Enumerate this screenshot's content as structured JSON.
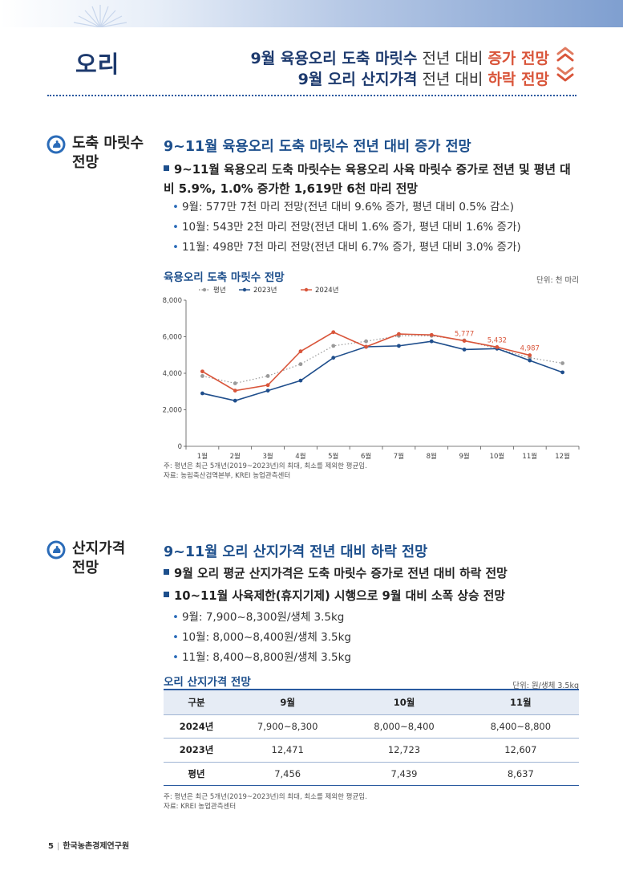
{
  "header": {
    "section_title": "오리",
    "headline1": {
      "bold": "9월 육용오리 도축 마릿수",
      "plain": " 전년 대비 ",
      "accent": "증가 전망"
    },
    "headline2": {
      "bold": "9월 오리 산지가격",
      "plain": " 전년 대비 ",
      "accent": "하락 전망"
    },
    "arrows_icon": "triple-chevron-up-down-icon"
  },
  "section1": {
    "side_label": [
      "도축 마릿수",
      "전망"
    ],
    "icon": "duck-icon",
    "heading": "9~11월 육용오리 도축 마릿수 전년 대비 증가 전망",
    "main_bullet": "9~11월 육용오리 도축 마릿수는 육용오리 사육 마릿수 증가로 전년 및 평년 대비 5.9%, 1.0% 증가한 1,619만 6천 마리 전망",
    "sub_bullets": [
      "9월: 577만 7천 마리 전망(전년 대비 9.6% 증가, 평년 대비 0.5% 감소)",
      "10월: 543만 2천 마리 전망(전년 대비 1.6% 증가, 평년 대비 1.6% 증가)",
      "11월: 498만 7천 마리 전망(전년 대비 6.7% 증가, 평년 대비 3.0% 증가)"
    ],
    "chart_title": "육용오리 도축 마릿수 전망",
    "chart_unit": "단위: 천 마리",
    "notes": [
      "주: 평년은 최근 5개년(2019~2023년)의 최대, 최소를 제외한 평균임.",
      "자료: 농림축산검역본부, KREI 농업관측센터"
    ]
  },
  "chart_data": {
    "type": "line",
    "title": "육용오리 도축 마릿수 전망",
    "x": [
      "1월",
      "2월",
      "3월",
      "4월",
      "5월",
      "6월",
      "7월",
      "8월",
      "9월",
      "10월",
      "11월",
      "12월"
    ],
    "ylim": [
      0,
      8000
    ],
    "yticks": [
      "0",
      "2,000",
      "4,000",
      "6,000",
      "8,000"
    ],
    "ytick_values": [
      0,
      2000,
      4000,
      6000,
      8000
    ],
    "grid": false,
    "legend_position": "top-left",
    "series": [
      {
        "name": "평년",
        "color": "#9a9a9a",
        "style": "dotted",
        "values": [
          3850,
          3450,
          3850,
          4500,
          5500,
          5750,
          6050,
          6050,
          5800,
          5350,
          4850,
          4550
        ]
      },
      {
        "name": "2023년",
        "color": "#1f4e8c",
        "style": "solid",
        "values": [
          2900,
          2500,
          3050,
          3600,
          4850,
          5450,
          5500,
          5750,
          5300,
          5350,
          4700,
          4050
        ]
      },
      {
        "name": "2024년",
        "color": "#d9553a",
        "style": "solid",
        "values": [
          4100,
          3050,
          3350,
          5200,
          6250,
          5450,
          6150,
          6100,
          5777,
          5432,
          4987,
          null
        ]
      }
    ],
    "annotations": [
      {
        "series": "2024년",
        "x": "9월",
        "label": "5,777"
      },
      {
        "series": "2024년",
        "x": "10월",
        "label": "5,432"
      },
      {
        "series": "2024년",
        "x": "11월",
        "label": "4,987"
      }
    ]
  },
  "section2": {
    "side_label": [
      "산지가격",
      "전망"
    ],
    "icon": "duck-icon",
    "heading": "9~11월 오리 산지가격 전년 대비 하락 전망",
    "main_bullets": [
      "9월 오리 평균 산지가격은 도축 마릿수 증가로 전년 대비 하락 전망",
      "10~11월 사육제한(휴지기제) 시행으로 9월 대비 소폭 상승 전망"
    ],
    "sub_bullets": [
      "9월: 7,900~8,300원/생체 3.5kg",
      "10월: 8,000~8,400원/생체 3.5kg",
      "11월: 8,400~8,800원/생체 3.5kg"
    ],
    "table_title": "오리 산지가격 전망",
    "table_unit": "단위: 원/생체 3.5kg",
    "table": {
      "headers": [
        "구분",
        "9월",
        "10월",
        "11월"
      ],
      "rows": [
        [
          "2024년",
          "7,900~8,300",
          "8,000~8,400",
          "8,400~8,800"
        ],
        [
          "2023년",
          "12,471",
          "12,723",
          "12,607"
        ],
        [
          "평년",
          "7,456",
          "7,439",
          "8,637"
        ]
      ]
    },
    "notes": [
      "주: 평년은 최근 5개년(2019~2023년)의 최대, 최소를 제외한 평균임.",
      "자료: KREI 농업관측센터"
    ]
  },
  "footer": {
    "page": "5",
    "separator": "|",
    "org": "한국농촌경제연구원"
  }
}
